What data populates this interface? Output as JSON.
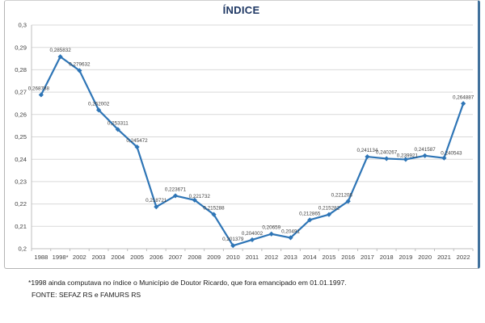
{
  "chart_data": {
    "type": "line",
    "title": "ÍNDICE",
    "categories": [
      "1988",
      "1998*",
      "2002",
      "2003",
      "2004",
      "2005",
      "2006",
      "2007",
      "2008",
      "2009",
      "2010",
      "2011",
      "2012",
      "2013",
      "2014",
      "2015",
      "2016",
      "2017",
      "2018",
      "2019",
      "2020",
      "2021",
      "2022"
    ],
    "series": [
      {
        "name": "ÍNDICE",
        "values": [
          0.268788,
          0.285832,
          0.279632,
          0.262002,
          0.253311,
          0.245472,
          0.218721,
          0.223671,
          0.221732,
          0.215288,
          0.201379,
          0.204002,
          0.20659,
          0.20491,
          0.212865,
          0.215282,
          0.221208,
          0.241134,
          0.240267,
          0.239921,
          0.241587,
          0.240543,
          0.264887
        ],
        "point_labels": [
          "0,268788",
          "0,285832",
          "0,279632",
          "0,262002",
          "0,253311",
          "0,245472",
          "0,218721",
          "0,223671",
          "0,221732",
          "0,215288",
          "0,201379",
          "0,204002",
          "0,20659",
          "0,20491",
          "0,212865",
          "0,215282",
          "0,221208",
          "0,241134",
          "0,240267",
          "0,239921",
          "0,241587",
          "0,240543",
          "0,264887"
        ]
      }
    ],
    "xlabel": "",
    "ylabel": "",
    "ylim": [
      0.2,
      0.3
    ],
    "y_tick_labels": [
      "0,3",
      "0,29",
      "0,28",
      "0,27",
      "0,26",
      "0,25",
      "0,24",
      "0,23",
      "0,22",
      "0,21",
      "0,2"
    ],
    "grid": true,
    "legend_position": "none",
    "line_color": "#2E75B6",
    "marker": "diamond",
    "gridline_color": "#D9D9D9",
    "axis_color": "#BFBFBF",
    "tick_label_color": "#404040",
    "data_label_color": "#3f3f3f",
    "title_color": "#1F3864"
  },
  "footnotes": {
    "line1": "*1998 ainda computava no índice o Município de Doutor Ricardo, que fora emancipado em 01.01.1997.",
    "line2": "FONTE: SEFAZ RS e FAMURS RS"
  }
}
